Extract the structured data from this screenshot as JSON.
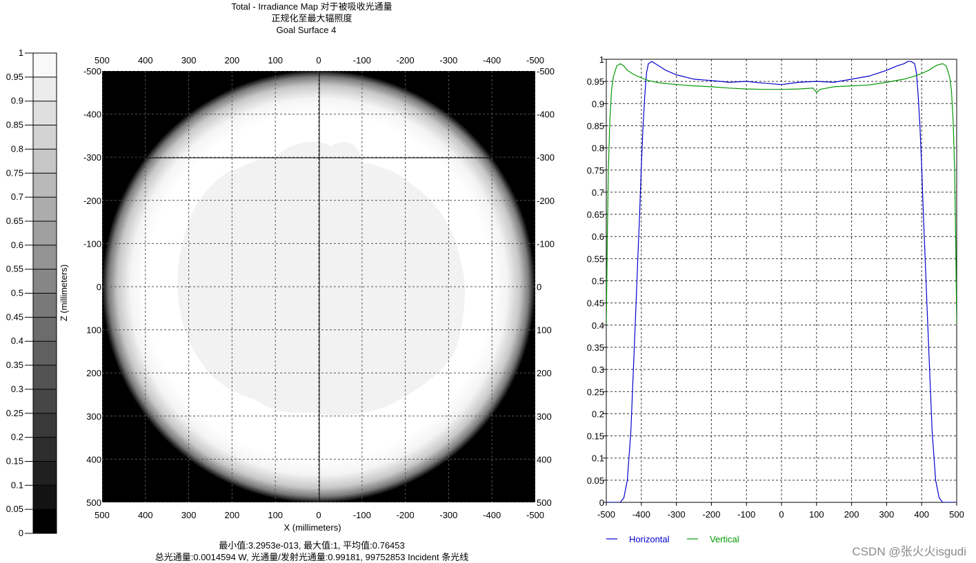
{
  "header": {
    "line1": "Total - Irradiance Map 对于被吸收光通量",
    "line2": "正规化至最大辐照度",
    "line3": "Goal Surface 4"
  },
  "footer": {
    "line1": "最小值:3.2953e-013, 最大值:1, 平均值:0.76453",
    "line2": "总光通量:0.0014594 W, 光通量/发射光通量:0.99181, 99752853 Incident 条光线"
  },
  "watermark": "CSDN @张火火isgudi",
  "colors": {
    "horizontal": "#0000cc",
    "vertical": "#009900",
    "background": "#ffffff",
    "map_outside": "#000000",
    "map_inside": "#ffffff",
    "blob": "#f2f2f2"
  },
  "chart_data": [
    {
      "type": "heatmap",
      "name": "colorbar",
      "colormap": "grayscale",
      "ylim": [
        0,
        1
      ],
      "ticks": [
        "0",
        "0.05",
        "0.1",
        "0.15",
        "0.2",
        "0.25",
        "0.3",
        "0.35",
        "0.4",
        "0.45",
        "0.5",
        "0.55",
        "0.6",
        "0.65",
        "0.7",
        "0.75",
        "0.8",
        "0.85",
        "0.9",
        "0.95",
        "1"
      ],
      "levels": 20
    },
    {
      "type": "heatmap",
      "name": "irradiance-map",
      "xlabel": "X (millimeters)",
      "ylabel": "Z (millimeters)",
      "xlim": [
        500,
        -500
      ],
      "zlim": [
        -500,
        500
      ],
      "x_ticks_top": [
        "500",
        "400",
        "300",
        "200",
        "100",
        "0",
        "-100",
        "-200",
        "-300",
        "-400",
        "-500"
      ],
      "x_ticks_bottom": [
        "500",
        "400",
        "300",
        "200",
        "100",
        "0",
        "-100",
        "-200",
        "-300",
        "-400",
        "-500"
      ],
      "z_ticks": [
        "-500",
        "-400",
        "-300",
        "-200",
        "-100",
        "0",
        "100",
        "200",
        "300",
        "400",
        "500"
      ],
      "grid": true,
      "circle_radius": 500,
      "edge_falloff_start": 400,
      "crosshair_x": 0,
      "crosshair_z": -300
    },
    {
      "type": "line",
      "name": "cross-section",
      "xlim": [
        -500,
        500
      ],
      "ylim": [
        0,
        1
      ],
      "x_ticks": [
        "-500",
        "-400",
        "-300",
        "-200",
        "-100",
        "0",
        "100",
        "200",
        "300",
        "400",
        "500"
      ],
      "y_ticks": [
        "0",
        "0.05",
        "0.1",
        "0.15",
        "0.2",
        "0.25",
        "0.3",
        "0.35",
        "0.4",
        "0.45",
        "0.5",
        "0.55",
        "0.6",
        "0.65",
        "0.7",
        "0.75",
        "0.8",
        "0.85",
        "0.9",
        "0.95",
        "1"
      ],
      "grid": true,
      "legend_position": "bottom-left",
      "series": [
        {
          "name": "Horizontal",
          "color": "#0000cc",
          "x": [
            -500,
            -480,
            -460,
            -450,
            -440,
            -430,
            -420,
            -415,
            -410,
            -405,
            -400,
            -395,
            -390,
            -385,
            -380,
            -370,
            -360,
            -350,
            -330,
            -300,
            -250,
            -200,
            -150,
            -100,
            -50,
            0,
            50,
            100,
            150,
            200,
            250,
            300,
            330,
            350,
            360,
            370,
            380,
            385,
            390,
            395,
            400,
            405,
            410,
            415,
            420,
            430,
            440,
            450,
            460,
            480,
            500
          ],
          "y": [
            0,
            0,
            0,
            0.01,
            0.05,
            0.16,
            0.35,
            0.45,
            0.55,
            0.65,
            0.76,
            0.85,
            0.92,
            0.97,
            0.99,
            0.995,
            0.99,
            0.985,
            0.975,
            0.965,
            0.955,
            0.952,
            0.948,
            0.95,
            0.946,
            0.943,
            0.948,
            0.95,
            0.948,
            0.955,
            0.962,
            0.975,
            0.985,
            0.99,
            0.995,
            0.995,
            0.99,
            0.97,
            0.92,
            0.85,
            0.76,
            0.65,
            0.55,
            0.45,
            0.35,
            0.16,
            0.05,
            0.01,
            0,
            0,
            0
          ]
        },
        {
          "name": "Vertical",
          "color": "#009900",
          "x": [
            -500,
            -497,
            -494,
            -490,
            -485,
            -480,
            -470,
            -460,
            -450,
            -440,
            -420,
            -400,
            -380,
            -350,
            -300,
            -250,
            -200,
            -150,
            -100,
            -50,
            0,
            50,
            90,
            100,
            110,
            150,
            200,
            250,
            300,
            350,
            380,
            400,
            420,
            440,
            450,
            460,
            470,
            480,
            485,
            490,
            494,
            497,
            500
          ],
          "y": [
            0.4,
            0.6,
            0.75,
            0.86,
            0.93,
            0.96,
            0.985,
            0.99,
            0.985,
            0.975,
            0.965,
            0.958,
            0.952,
            0.947,
            0.943,
            0.94,
            0.938,
            0.935,
            0.933,
            0.932,
            0.932,
            0.933,
            0.935,
            0.925,
            0.932,
            0.938,
            0.94,
            0.942,
            0.948,
            0.955,
            0.962,
            0.968,
            0.975,
            0.985,
            0.988,
            0.99,
            0.985,
            0.96,
            0.93,
            0.86,
            0.75,
            0.6,
            0.4
          ]
        }
      ]
    }
  ]
}
